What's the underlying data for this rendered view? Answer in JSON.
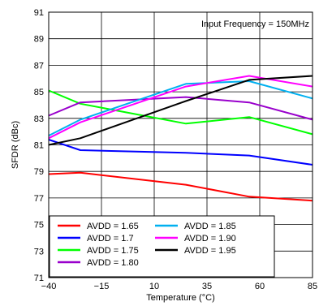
{
  "chart_data": {
    "type": "line",
    "title": "",
    "annotation": "Input Frequency = 150MHz",
    "xlabel": "Temperature (°C)",
    "ylabel": "SFDR (dBc)",
    "xlim": [
      -40,
      85
    ],
    "ylim": [
      71,
      91
    ],
    "x_ticks": [
      "-40",
      "-15",
      "10",
      "35",
      "60",
      "85"
    ],
    "y_ticks": [
      "71",
      "73",
      "75",
      "77",
      "79",
      "81",
      "83",
      "85",
      "87",
      "89",
      "91"
    ],
    "x_tick_values": [
      -40,
      -15,
      10,
      35,
      60,
      85
    ],
    "y_tick_values": [
      71,
      73,
      75,
      77,
      79,
      81,
      83,
      85,
      87,
      89,
      91
    ],
    "grid": true,
    "legend_position": "bottom-left",
    "x": [
      -40,
      -25,
      25,
      55,
      85
    ],
    "series": [
      {
        "name": "AVDD = 1.65",
        "color": "#ff0000",
        "values": [
          78.8,
          78.9,
          78.0,
          77.1,
          76.8
        ]
      },
      {
        "name": "AVDD = 1.7",
        "color": "#0000ff",
        "values": [
          81.4,
          80.6,
          80.4,
          80.2,
          79.5
        ]
      },
      {
        "name": "AVDD = 1.75",
        "color": "#00ff00",
        "values": [
          85.1,
          84.1,
          82.6,
          83.1,
          81.8
        ]
      },
      {
        "name": "AVDD = 1.80",
        "color": "#9900cc",
        "values": [
          83.2,
          84.2,
          84.6,
          84.2,
          82.9
        ]
      },
      {
        "name": "AVDD = 1.85",
        "color": "#00b0f0",
        "values": [
          81.7,
          82.9,
          85.6,
          85.8,
          84.5
        ]
      },
      {
        "name": "AVDD = 1.90",
        "color": "#ff00ff",
        "values": [
          81.5,
          82.7,
          85.4,
          86.2,
          85.4
        ]
      },
      {
        "name": "AVDD = 1.95",
        "color": "#000000",
        "values": [
          81.0,
          81.5,
          84.3,
          85.9,
          86.2
        ]
      }
    ]
  }
}
